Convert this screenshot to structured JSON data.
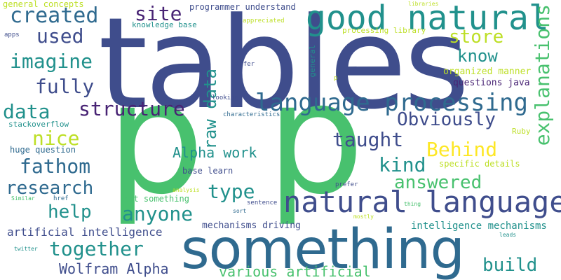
{
  "colors": {
    "background": "#ffffff",
    "navy": "#3f4d8c",
    "blue": "#2f6a8f",
    "teal": "#21918c",
    "green": "#48c16e",
    "lime": "#bddf26",
    "yellow": "#fde725",
    "purple": "#482374"
  },
  "words": [
    "tables",
    "p",
    "p",
    "something",
    "good natural",
    "language processing",
    "natural language",
    "explanations",
    "Obviously",
    "structure",
    "raw data",
    "created",
    "site",
    "used",
    "imagine",
    "store",
    "know",
    "fully",
    "data",
    "nice",
    "taught",
    "Behind",
    "kind",
    "Alpha work",
    "fathom",
    "research",
    "answered",
    "type",
    "help",
    "anyone",
    "build",
    "together",
    "Wolfram Alpha",
    "various artificial",
    "artificial intelligence",
    "intelligence mechanisms",
    "mechanisms driving",
    "programmer understand",
    "knowledge base",
    "general concepts",
    "processing library",
    "organized manner",
    "questions java",
    "stackoverflow",
    "huge question",
    "specific details",
    "base learn",
    "put something",
    "general",
    "appreciated",
    "libraries",
    "apps",
    "infer",
    "looking",
    "characteristics",
    "Ruby",
    "prefer",
    "analysis",
    "href",
    "Similar",
    "sort",
    "sentence",
    "thing",
    "mostly",
    "leads",
    "twitter",
    "p"
  ]
}
